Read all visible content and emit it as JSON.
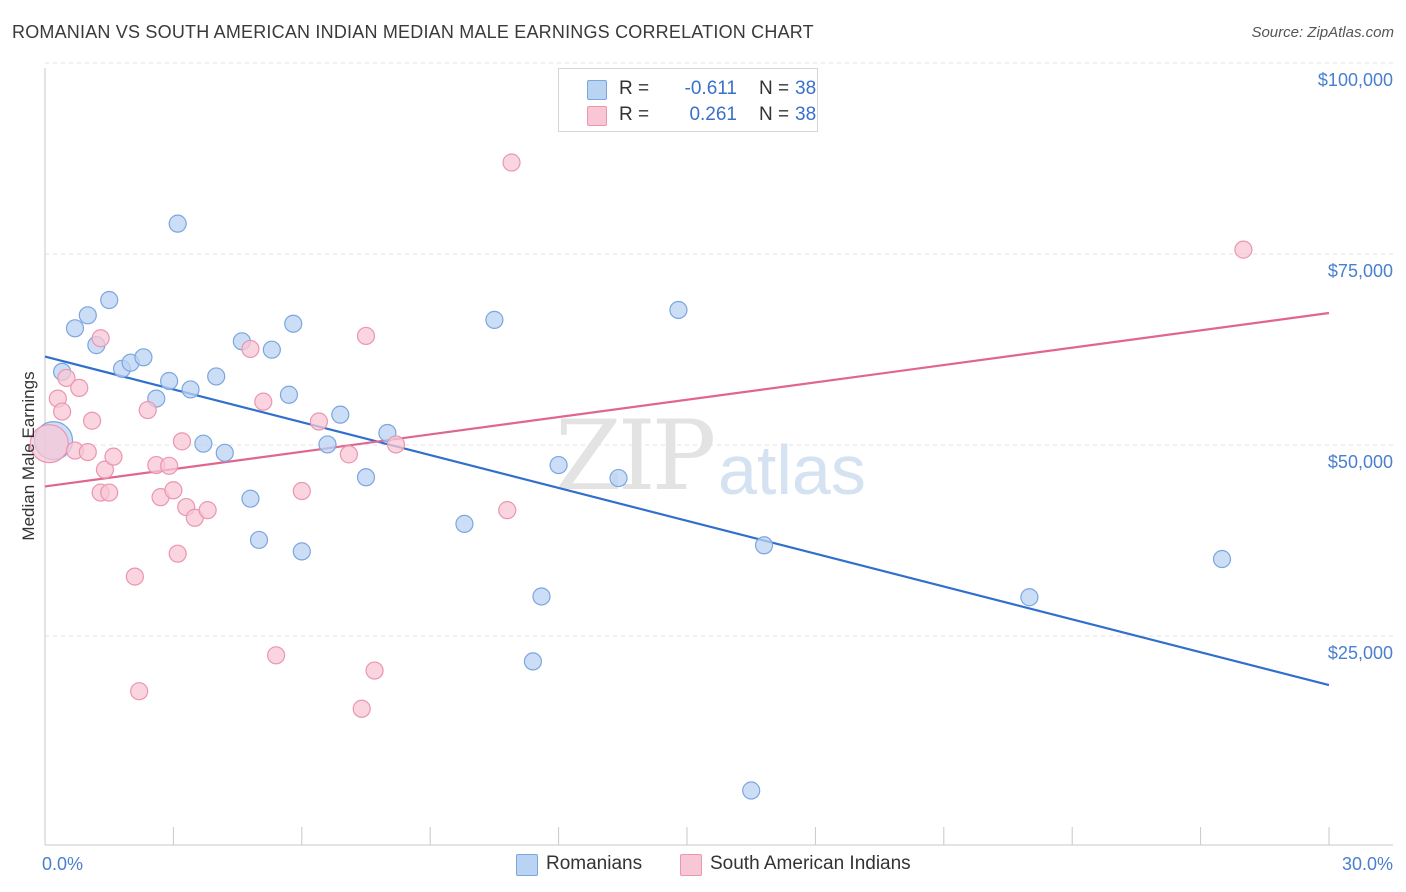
{
  "title": "ROMANIAN VS SOUTH AMERICAN INDIAN MEDIAN MALE EARNINGS CORRELATION CHART",
  "source": "Source: ZipAtlas.com",
  "watermark": {
    "zip": "ZIP",
    "atlas": "atlas"
  },
  "colors": {
    "romanians_fill": "#b9d3f3",
    "romanians_stroke": "#7ba6e0",
    "romanians_line": "#3070cc",
    "sai_fill": "#f8c7d6",
    "sai_stroke": "#eb95b1",
    "sai_line": "#e06690",
    "axis_text": "#4a7fd0",
    "grid": "#e0e0e0"
  },
  "legend": {
    "rows": [
      {
        "r_label": "R =",
        "r_value": "-0.611",
        "n_label": "N =",
        "n_value": "38"
      },
      {
        "r_label": "R =",
        "r_value": "0.261",
        "n_label": "N =",
        "n_value": "38"
      }
    ]
  },
  "chart_data": {
    "type": "scatter",
    "title": "ROMANIAN VS SOUTH AMERICAN INDIAN MEDIAN MALE EARNINGS CORRELATION CHART",
    "xlabel": "",
    "ylabel": "Median Male Earnings",
    "xlim": [
      0,
      30
    ],
    "ylim": [
      0,
      104000
    ],
    "x_tick_labels": [
      {
        "value": 0,
        "label": "0.0%"
      },
      {
        "value": 30,
        "label": "30.0%"
      }
    ],
    "y_tick_labels": [
      {
        "value": 25000,
        "label": "$25,000"
      },
      {
        "value": 50000,
        "label": "$50,000"
      },
      {
        "value": 75000,
        "label": "$75,000"
      },
      {
        "value": 100000,
        "label": "$100,000"
      }
    ],
    "legend_position": "top-center",
    "series": [
      {
        "name": "Romanians",
        "trend": {
          "x": [
            0,
            30
          ],
          "y": [
            63800,
            20800
          ]
        },
        "points": [
          {
            "x": 0.2,
            "y": 52800,
            "big": true
          },
          {
            "x": 0.4,
            "y": 61800
          },
          {
            "x": 0.7,
            "y": 67500
          },
          {
            "x": 1.0,
            "y": 69200
          },
          {
            "x": 1.2,
            "y": 65300
          },
          {
            "x": 1.5,
            "y": 71200
          },
          {
            "x": 1.8,
            "y": 62200
          },
          {
            "x": 2.0,
            "y": 63000
          },
          {
            "x": 2.3,
            "y": 63700
          },
          {
            "x": 2.6,
            "y": 58300
          },
          {
            "x": 2.9,
            "y": 60600
          },
          {
            "x": 3.1,
            "y": 81200
          },
          {
            "x": 3.4,
            "y": 59500
          },
          {
            "x": 3.7,
            "y": 52400
          },
          {
            "x": 4.0,
            "y": 61200
          },
          {
            "x": 4.2,
            "y": 51200
          },
          {
            "x": 4.6,
            "y": 65800
          },
          {
            "x": 4.8,
            "y": 45200
          },
          {
            "x": 5.0,
            "y": 39800
          },
          {
            "x": 5.3,
            "y": 64700
          },
          {
            "x": 5.7,
            "y": 58800
          },
          {
            "x": 5.8,
            "y": 68100
          },
          {
            "x": 6.0,
            "y": 38300
          },
          {
            "x": 6.6,
            "y": 52300
          },
          {
            "x": 6.9,
            "y": 56200
          },
          {
            "x": 7.5,
            "y": 48000
          },
          {
            "x": 8.0,
            "y": 53800
          },
          {
            "x": 9.8,
            "y": 41900
          },
          {
            "x": 10.5,
            "y": 68600
          },
          {
            "x": 11.4,
            "y": 23900
          },
          {
            "x": 11.6,
            "y": 32400
          },
          {
            "x": 12.0,
            "y": 49600
          },
          {
            "x": 13.4,
            "y": 47900
          },
          {
            "x": 14.8,
            "y": 69900
          },
          {
            "x": 16.5,
            "y": 7000
          },
          {
            "x": 16.8,
            "y": 39100
          },
          {
            "x": 23.0,
            "y": 32300
          },
          {
            "x": 27.5,
            "y": 37300
          }
        ]
      },
      {
        "name": "South American Indians",
        "trend": {
          "x": [
            0,
            30
          ],
          "y": [
            46800,
            69500
          ]
        },
        "points": [
          {
            "x": 0.1,
            "y": 52400,
            "big": true
          },
          {
            "x": 0.3,
            "y": 58300
          },
          {
            "x": 0.4,
            "y": 56600
          },
          {
            "x": 0.5,
            "y": 61000
          },
          {
            "x": 0.7,
            "y": 51500
          },
          {
            "x": 0.8,
            "y": 59700
          },
          {
            "x": 1.0,
            "y": 51300
          },
          {
            "x": 1.1,
            "y": 55400
          },
          {
            "x": 1.3,
            "y": 46000
          },
          {
            "x": 1.3,
            "y": 66200
          },
          {
            "x": 1.4,
            "y": 49000
          },
          {
            "x": 1.5,
            "y": 46000
          },
          {
            "x": 1.6,
            "y": 50700
          },
          {
            "x": 2.1,
            "y": 35000
          },
          {
            "x": 2.2,
            "y": 20000
          },
          {
            "x": 2.4,
            "y": 56800
          },
          {
            "x": 2.6,
            "y": 49600
          },
          {
            "x": 2.7,
            "y": 45400
          },
          {
            "x": 2.9,
            "y": 49500
          },
          {
            "x": 3.0,
            "y": 46300
          },
          {
            "x": 3.1,
            "y": 38000
          },
          {
            "x": 3.2,
            "y": 52700
          },
          {
            "x": 3.3,
            "y": 44100
          },
          {
            "x": 3.5,
            "y": 42700
          },
          {
            "x": 3.8,
            "y": 43700
          },
          {
            "x": 4.8,
            "y": 64800
          },
          {
            "x": 5.1,
            "y": 57900
          },
          {
            "x": 5.4,
            "y": 24700
          },
          {
            "x": 6.0,
            "y": 46200
          },
          {
            "x": 6.4,
            "y": 55300
          },
          {
            "x": 7.1,
            "y": 51000
          },
          {
            "x": 7.4,
            "y": 17700
          },
          {
            "x": 7.5,
            "y": 66500
          },
          {
            "x": 7.7,
            "y": 22700
          },
          {
            "x": 8.2,
            "y": 52300
          },
          {
            "x": 10.8,
            "y": 43700
          },
          {
            "x": 10.9,
            "y": 89200
          },
          {
            "x": 28.0,
            "y": 77800
          }
        ]
      }
    ]
  }
}
